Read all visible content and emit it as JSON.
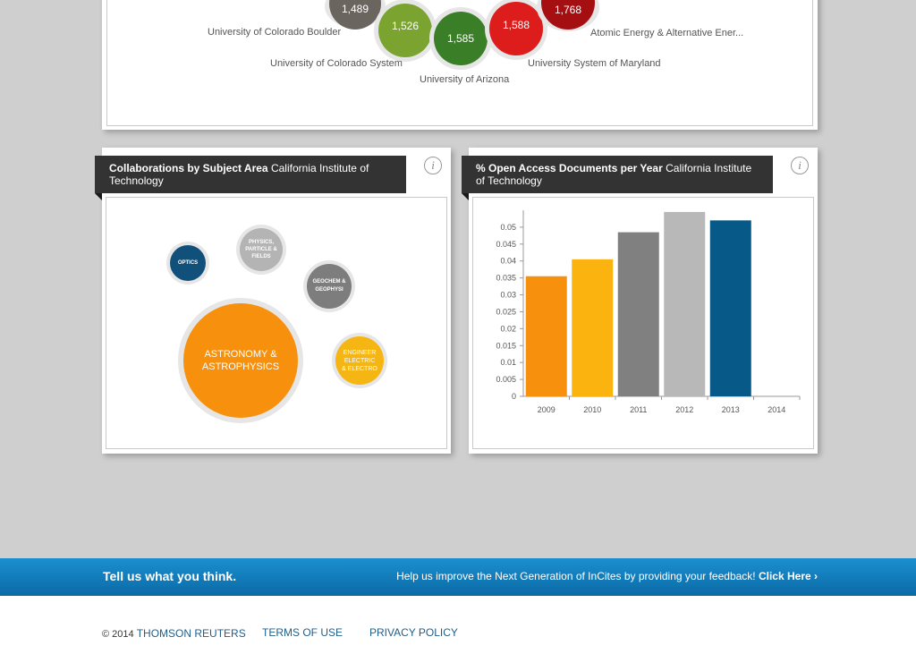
{
  "top_chart": {
    "bubbles": [
      {
        "value": "1,489",
        "color": "#6b6560"
      },
      {
        "value": "1,526",
        "color": "#7aa42f"
      },
      {
        "value": "1,585",
        "color": "#3a7f27"
      },
      {
        "value": "1,588",
        "color": "#dd1c1c"
      },
      {
        "value": "1,768",
        "color": "#a50f12"
      }
    ],
    "labels": [
      "University of Colorado Boulder",
      "University of Colorado System",
      "University of Arizona",
      "University System of Maryland",
      "Atomic Energy & Alternative Ener..."
    ]
  },
  "collab_panel": {
    "title_bold": "Collaborations by Subject Area",
    "title_rest": "California Institute of Technology",
    "info_icon": "i",
    "bubbles": [
      {
        "label": "OPTICS",
        "color": "#11507a"
      },
      {
        "label": "PHYSICS, PARTICLE & FIELDS",
        "color": "#b4b4b4"
      },
      {
        "label": "GEOCHEM & GEOPHYSI",
        "color": "#7d7d7d"
      },
      {
        "label": "ASTRONOMY & ASTROPHYSICS",
        "color": "#f7900d"
      },
      {
        "label": "ENGINEER ELECTRIC & ELECTRO",
        "color": "#f5b512"
      }
    ]
  },
  "oa_panel": {
    "title_bold": "% Open Access Documents per Year",
    "title_rest": "California Institute of Technology",
    "info_icon": "i"
  },
  "chart_data": {
    "type": "bar",
    "categories": [
      "2009",
      "2010",
      "2011",
      "2012",
      "2013",
      "2014"
    ],
    "values": [
      0.0355,
      0.0405,
      0.0485,
      0.0545,
      0.052,
      null
    ],
    "colors": [
      "#f7900d",
      "#fbb40f",
      "#808080",
      "#b8b8b8",
      "#075a87",
      "#cccccc"
    ],
    "yticks": [
      "0",
      "0.005",
      "0.01",
      "0.015",
      "0.02",
      "0.025",
      "0.03",
      "0.035",
      "0.04",
      "0.045",
      "0.05"
    ],
    "ylim": [
      0,
      0.055
    ],
    "title": "% Open Access Documents per Year",
    "xlabel": "",
    "ylabel": ""
  },
  "feedback": {
    "title": "Tell us what you think.",
    "text": "Help us improve the Next Generation of InCites by providing your feedback!",
    "link": "Click Here ›"
  },
  "footer": {
    "copyright": "© 2014",
    "brand": "THOMSON REUTERS",
    "terms": "TERMS OF USE",
    "privacy": "PRIVACY POLICY"
  }
}
